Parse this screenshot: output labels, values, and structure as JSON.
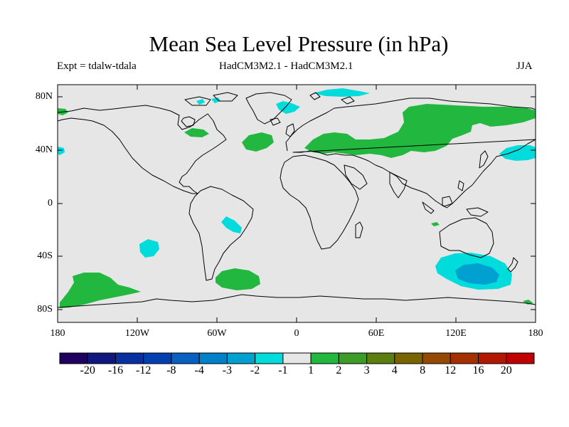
{
  "title": "Mean Sea Level Pressure (in hPa)",
  "experiment": "Expt = tdalw-tdala",
  "model": "HadCM3M2.1 - HadCM3M2.1",
  "season": "JJA",
  "colors": {
    "ocean_land": "#e6e6e6",
    "coast": "#000000",
    "pos_light": "#22b840",
    "neg_1": "#00dcdc",
    "neg_2": "#00a0d0"
  },
  "map": {
    "lat_ticks": [
      "80N",
      "40N",
      "0",
      "40S",
      "80S"
    ],
    "lon_ticks": [
      "180",
      "120W",
      "60W",
      "0",
      "60E",
      "120E",
      "180"
    ]
  },
  "colorbar": {
    "labels": [
      "-20",
      "-16",
      "-12",
      "-8",
      "-4",
      "-3",
      "-2",
      "-1",
      "1",
      "2",
      "3",
      "4",
      "8",
      "12",
      "16",
      "20"
    ],
    "colors": [
      "#200060",
      "#101880",
      "#0830a0",
      "#0040b0",
      "#0860c0",
      "#0080c8",
      "#00a0d0",
      "#00dcdc",
      "#e6e6e6",
      "#22b840",
      "#3c9c28",
      "#5a7e10",
      "#7a6400",
      "#944a00",
      "#a43000",
      "#b01800",
      "#c00000"
    ]
  }
}
